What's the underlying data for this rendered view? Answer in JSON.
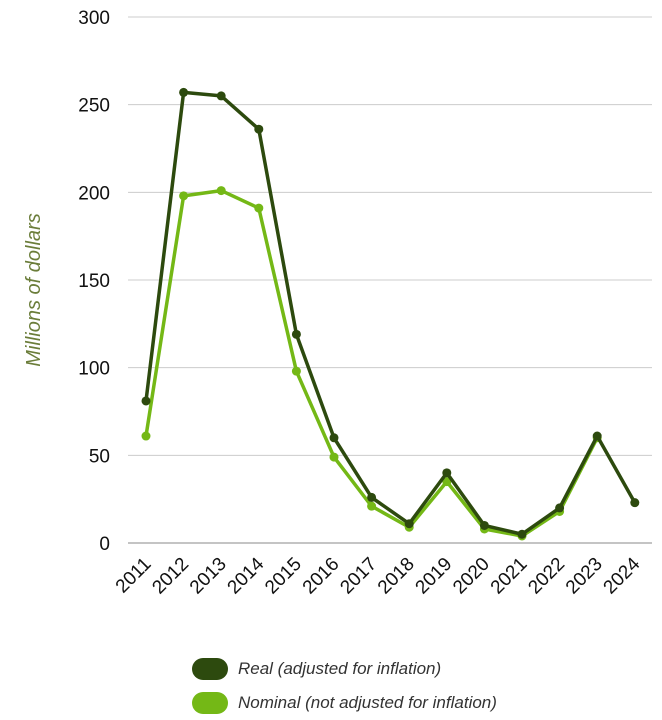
{
  "chart_data": {
    "type": "line",
    "ylabel": "Millions of dollars",
    "xlabel": "",
    "categories": [
      "2011",
      "2012",
      "2013",
      "2014",
      "2015",
      "2016",
      "2017",
      "2018",
      "2019",
      "2020",
      "2021",
      "2022",
      "2023",
      "2024"
    ],
    "ylim": [
      0,
      300
    ],
    "yticks": [
      0,
      50,
      100,
      150,
      200,
      250,
      300
    ],
    "grid": true,
    "legend_position": "bottom",
    "series": [
      {
        "name": "Real (adjusted for inflation)",
        "color": "#2d4a0e",
        "values": [
          81,
          257,
          255,
          236,
          119,
          60,
          26,
          11,
          40,
          10,
          5,
          20,
          61,
          23
        ]
      },
      {
        "name": "Nominal (not adjusted for inflation)",
        "color": "#74b816",
        "values": [
          61,
          198,
          201,
          191,
          98,
          49,
          21,
          9,
          35,
          8,
          4,
          18,
          60,
          null
        ]
      }
    ]
  }
}
